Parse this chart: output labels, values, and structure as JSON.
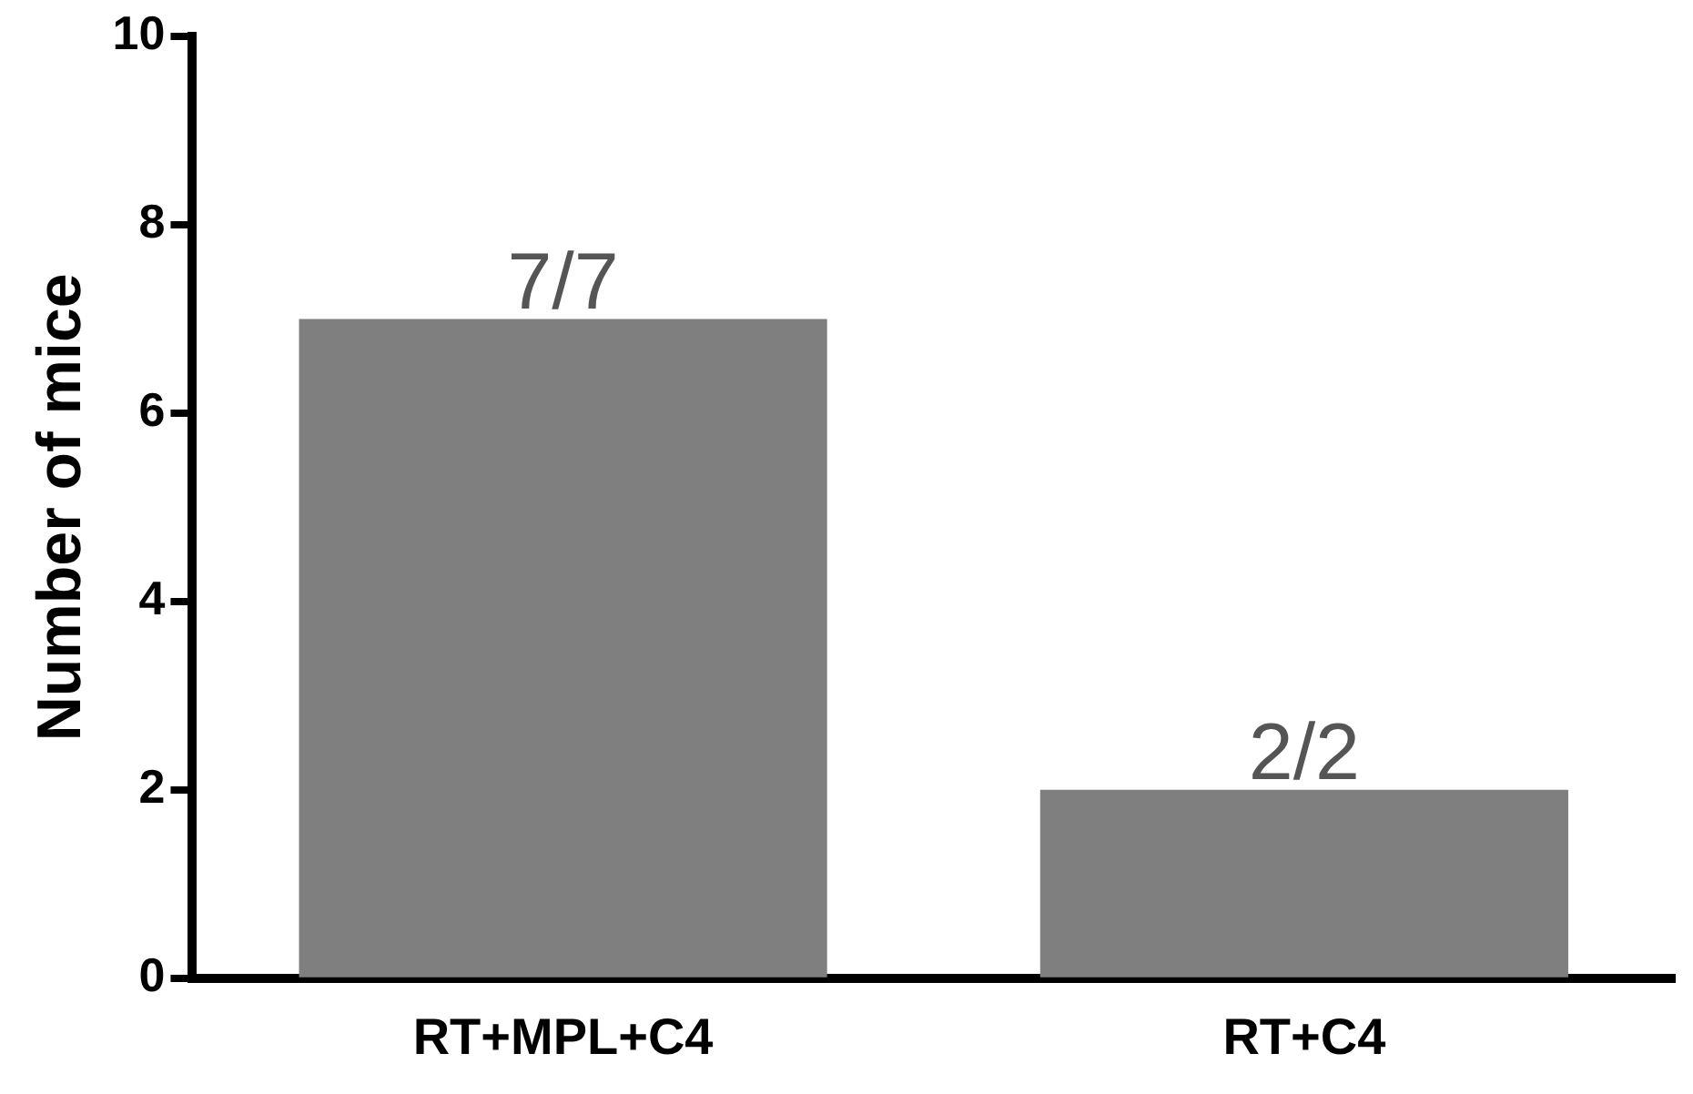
{
  "chart_data": {
    "type": "bar",
    "ylabel": "Number of mice",
    "categories": [
      "RT+MPL+C4",
      "RT+C4"
    ],
    "values": [
      7,
      2
    ],
    "color": "#7f7f7f",
    "annotations": [
      {
        "text": "7/7",
        "x": "RT+MPL+C4",
        "y": 7
      },
      {
        "text": "2/2",
        "x": "RT+C4",
        "y": 2
      }
    ],
    "ylim": [
      0,
      10
    ],
    "yticks": [
      0,
      2,
      4,
      6,
      8,
      10
    ],
    "grid": false,
    "legend": false
  }
}
